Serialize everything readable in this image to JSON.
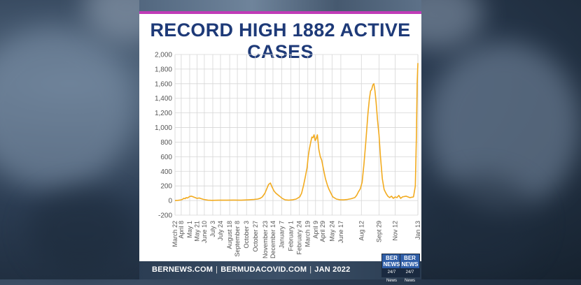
{
  "page": {
    "title": "RECORD HIGH 1882 ACTIVE CASES",
    "footer": {
      "items": [
        "BERNEWS.COM",
        "BERMUDACOVID.COM",
        "JAN 2022"
      ],
      "separator": "|"
    },
    "logos": [
      {
        "top": "BER NEWS",
        "bottom": "24/7 News"
      },
      {
        "top": "BER NEWS",
        "bottom": "24/7 News"
      }
    ],
    "colors": {
      "line": "#f2ab1f",
      "title": "#1e3a78",
      "accent_stripe": "#c03bb7",
      "grid": "#d6d6d6"
    }
  },
  "chart_data": {
    "type": "line",
    "title": "RECORD HIGH 1882 ACTIVE CASES",
    "xlabel": "",
    "ylabel": "",
    "ylim": [
      -200,
      2000
    ],
    "y_ticks": [
      -200,
      0,
      200,
      400,
      600,
      800,
      1000,
      1200,
      1400,
      1600,
      1800,
      2000
    ],
    "y_tick_labels": [
      "-200",
      "0",
      "200",
      "400",
      "600",
      "800",
      "1,000",
      "1,200",
      "1,400",
      "1,600",
      "1,800",
      "2,000"
    ],
    "grid": true,
    "x_tick_labels": [
      "March 22",
      "April 8",
      "May 1",
      "May 21",
      "June 10",
      "July 3",
      "July 24",
      "August 18",
      "September 8",
      "October 3",
      "October 27",
      "November 23",
      "December 14",
      "January 7",
      "February 1",
      "February 24",
      "March 19",
      "April 9",
      "April 29",
      "May 24",
      "June 17",
      "Aug 12",
      "Sept 29",
      "Nov 12",
      "Jan 13"
    ],
    "x_tick_positions": [
      0,
      17,
      40,
      60,
      80,
      103,
      124,
      149,
      170,
      195,
      219,
      246,
      267,
      291,
      316,
      339,
      362,
      383,
      403,
      428,
      452,
      508,
      556,
      600,
      662
    ],
    "series": [
      {
        "x": [
          0,
          8,
          15,
          20,
          24,
          28,
          30,
          34,
          40,
          45,
          50,
          55,
          60,
          66,
          72,
          78,
          84,
          90,
          100,
          120,
          140,
          160,
          180,
          200,
          215,
          225,
          232,
          238,
          245,
          250,
          255,
          260,
          265,
          270,
          275,
          280,
          285,
          292,
          300,
          310,
          320,
          330,
          340,
          345,
          350,
          355,
          360,
          363,
          366,
          370,
          373,
          376,
          379,
          382,
          385,
          388,
          392,
          396,
          400,
          405,
          410,
          416,
          420,
          425,
          430,
          440,
          450,
          460,
          470,
          480,
          490,
          495,
          500,
          505,
          510,
          515,
          520,
          523,
          526,
          530,
          533,
          536,
          539,
          542,
          545,
          548,
          552,
          556,
          560,
          565,
          570,
          575,
          580,
          585,
          590,
          595,
          600,
          605,
          610,
          615,
          620,
          630,
          640,
          650,
          655,
          658,
          660,
          662
        ],
        "values": [
          0,
          3,
          8,
          15,
          30,
          25,
          40,
          35,
          55,
          60,
          50,
          40,
          30,
          35,
          25,
          15,
          10,
          5,
          3,
          5,
          5,
          6,
          5,
          10,
          15,
          20,
          30,
          50,
          100,
          160,
          220,
          240,
          180,
          130,
          100,
          80,
          60,
          30,
          10,
          5,
          10,
          20,
          50,
          100,
          200,
          320,
          450,
          600,
          700,
          800,
          870,
          860,
          900,
          820,
          850,
          900,
          700,
          600,
          550,
          420,
          300,
          200,
          150,
          100,
          50,
          20,
          10,
          10,
          15,
          25,
          40,
          70,
          120,
          160,
          250,
          500,
          800,
          1000,
          1200,
          1400,
          1500,
          1520,
          1580,
          1600,
          1500,
          1350,
          1100,
          900,
          600,
          300,
          150,
          100,
          60,
          40,
          60,
          30,
          50,
          40,
          70,
          30,
          50,
          60,
          40,
          50,
          200,
          900,
          1600,
          1882
        ]
      }
    ]
  }
}
